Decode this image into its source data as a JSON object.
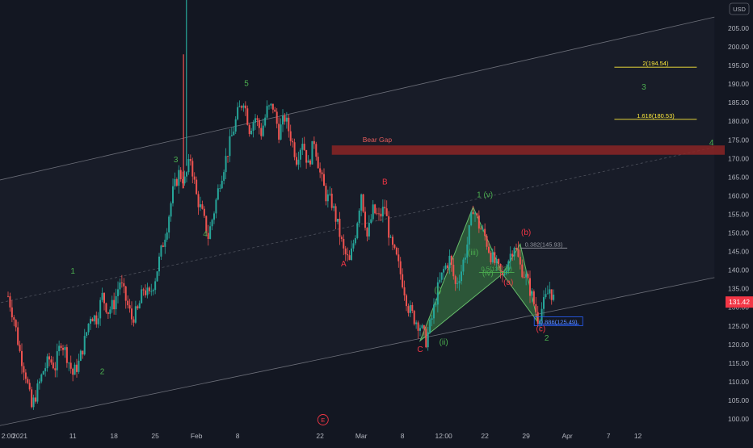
{
  "chart_data": {
    "type": "candlestick",
    "currency": "USD",
    "last_price": "131.42",
    "y_ticks": [
      "205.00",
      "200.00",
      "195.00",
      "190.00",
      "185.00",
      "180.00",
      "175.00",
      "170.00",
      "165.00",
      "160.00",
      "155.00",
      "150.00",
      "145.00",
      "140.00",
      "135.00",
      "130.00",
      "125.00",
      "120.00",
      "115.00",
      "110.00",
      "105.00",
      "100.00"
    ],
    "x_ticks": [
      {
        "label": "2:00",
        "day": 0
      },
      {
        "label": "2021",
        "day": 2
      },
      {
        "label": "11",
        "day": 11
      },
      {
        "label": "18",
        "day": 18
      },
      {
        "label": "25",
        "day": 25
      },
      {
        "label": "Feb",
        "day": 32
      },
      {
        "label": "8",
        "day": 39
      },
      {
        "label": "22",
        "day": 53
      },
      {
        "label": "Mar",
        "day": 60
      },
      {
        "label": "8",
        "day": 67
      },
      {
        "label": "12:00",
        "day": 74
      },
      {
        "label": "22",
        "day": 81
      },
      {
        "label": "29",
        "day": 88
      },
      {
        "label": "Apr",
        "day": 95
      },
      {
        "label": "7",
        "day": 102
      },
      {
        "label": "12",
        "day": 107
      }
    ],
    "price_path": [
      [
        0,
        133
      ],
      [
        1,
        127
      ],
      [
        2,
        118
      ],
      [
        3,
        112
      ],
      [
        4,
        103
      ],
      [
        5,
        108
      ],
      [
        6,
        113
      ],
      [
        7,
        116
      ],
      [
        8,
        114
      ],
      [
        9,
        121
      ],
      [
        10,
        117
      ],
      [
        11,
        112
      ],
      [
        12,
        115
      ],
      [
        13,
        121
      ],
      [
        14,
        128
      ],
      [
        15,
        127
      ],
      [
        16,
        133
      ],
      [
        17,
        129
      ],
      [
        18,
        131
      ],
      [
        19,
        137
      ],
      [
        20,
        132
      ],
      [
        21,
        127
      ],
      [
        22,
        129
      ],
      [
        23,
        135
      ],
      [
        24,
        133
      ],
      [
        25,
        138
      ],
      [
        26,
        145
      ],
      [
        27,
        152
      ],
      [
        28,
        161
      ],
      [
        29,
        166
      ],
      [
        30,
        164
      ],
      [
        31,
        170
      ],
      [
        32,
        160
      ],
      [
        33,
        155
      ],
      [
        34,
        149
      ],
      [
        35,
        156
      ],
      [
        36,
        164
      ],
      [
        37,
        170
      ],
      [
        38,
        176
      ],
      [
        39,
        182
      ],
      [
        40,
        186
      ],
      [
        41,
        178
      ],
      [
        42,
        181
      ],
      [
        43,
        177
      ],
      [
        44,
        183
      ],
      [
        45,
        184
      ],
      [
        46,
        177
      ],
      [
        47,
        181
      ],
      [
        48,
        176
      ],
      [
        49,
        170
      ],
      [
        50,
        175
      ],
      [
        51,
        168
      ],
      [
        52,
        175
      ],
      [
        53,
        166
      ],
      [
        54,
        160
      ],
      [
        55,
        158
      ],
      [
        56,
        152
      ],
      [
        57,
        145
      ],
      [
        58,
        142
      ],
      [
        59,
        150
      ],
      [
        60,
        161
      ],
      [
        61,
        149
      ],
      [
        62,
        156
      ],
      [
        63,
        154
      ],
      [
        64,
        157
      ],
      [
        65,
        147
      ],
      [
        66,
        143
      ],
      [
        67,
        137
      ],
      [
        68,
        130
      ],
      [
        69,
        127
      ],
      [
        70,
        125
      ],
      [
        71,
        121
      ],
      [
        72,
        127
      ],
      [
        73,
        135
      ],
      [
        74,
        140
      ],
      [
        75,
        143
      ],
      [
        76,
        136
      ],
      [
        77,
        140
      ],
      [
        78,
        147
      ],
      [
        79,
        157
      ],
      [
        80,
        152
      ],
      [
        81,
        149
      ],
      [
        82,
        144
      ],
      [
        83,
        141
      ],
      [
        84,
        138
      ],
      [
        85,
        143
      ],
      [
        86,
        147
      ],
      [
        87,
        141
      ],
      [
        88,
        138
      ],
      [
        89,
        133
      ],
      [
        90,
        127
      ],
      [
        91,
        131
      ],
      [
        92,
        135
      ],
      [
        93,
        131
      ]
    ],
    "spike_high": 215,
    "spike_low_wick": 170,
    "wave_labels": [
      {
        "text": "1",
        "day": 11,
        "price": 139,
        "color": "#4caf50"
      },
      {
        "text": "2",
        "day": 16,
        "price": 112,
        "color": "#4caf50"
      },
      {
        "text": "3",
        "day": 28.5,
        "price": 169,
        "color": "#4caf50"
      },
      {
        "text": "4",
        "day": 33.5,
        "price": 149,
        "color": "#4caf50"
      },
      {
        "text": "5",
        "day": 40.5,
        "price": 189.5,
        "color": "#4caf50"
      },
      {
        "text": "A",
        "day": 57,
        "price": 141,
        "color": "#f23645"
      },
      {
        "text": "B",
        "day": 64,
        "price": 163,
        "color": "#f23645"
      },
      {
        "text": "C",
        "day": 70,
        "price": 118,
        "color": "#f23645"
      },
      {
        "text": "(i)",
        "day": 73,
        "price": 134,
        "color": "#4caf50"
      },
      {
        "text": "(ii)",
        "day": 74,
        "price": 120,
        "color": "#4caf50"
      },
      {
        "text": "(iii)",
        "day": 79,
        "price": 144,
        "color": "#4caf50"
      },
      {
        "text": "1 (v)",
        "day": 81,
        "price": 159.5,
        "color": "#4caf50"
      },
      {
        "text": "(iv)",
        "day": 81.5,
        "price": 138.5,
        "color": "#4caf50"
      },
      {
        "text": "(a)",
        "day": 85,
        "price": 136,
        "color": "#f23645"
      },
      {
        "text": "(b)",
        "day": 88,
        "price": 149.5,
        "color": "#f23645"
      },
      {
        "text": "(c)",
        "day": 90.5,
        "price": 123.5,
        "color": "#f23645"
      },
      {
        "text": "2",
        "day": 91.5,
        "price": 121,
        "color": "#4caf50"
      },
      {
        "text": "3",
        "day": 108,
        "price": 188.5,
        "color": "#4caf50"
      },
      {
        "text": "4",
        "day": 119.5,
        "price": 173.5,
        "color": "#4caf50"
      }
    ],
    "fib_labels": [
      {
        "text": "2(194.54)",
        "day_start": 103,
        "day_end": 117,
        "price": 194.54,
        "color": "#ffeb3b"
      },
      {
        "text": "1.618(180.53)",
        "day_start": 103,
        "day_end": 117,
        "price": 180.53,
        "color": "#ffeb3b"
      },
      {
        "text": "0.382(145.93)",
        "day_start": 87,
        "day_end": 95,
        "price": 145.93,
        "color": "#9598a1"
      },
      {
        "text": "0.5(139.39)",
        "day_start": 80,
        "day_end": 86,
        "price": 139.39,
        "color": "#4caf50"
      },
      {
        "text": "0.886(125.49)",
        "day_start": 90,
        "day_end": 97,
        "price": 125.49,
        "color": "#2962ff"
      }
    ],
    "bear_gap": {
      "label": "Bear Gap",
      "price_top": 173.5,
      "price_bottom": 171.0,
      "day_start": 55
    },
    "harmonic_pattern": [
      [
        70,
        121
      ],
      [
        79,
        157
      ],
      [
        84,
        139
      ],
      [
        87,
        147
      ],
      [
        90,
        126
      ]
    ],
    "channel": {
      "upper": [
        [
          -2,
          164
        ],
        [
          120,
          208
        ]
      ],
      "lower": [
        [
          -2,
          98
        ],
        [
          120,
          138
        ]
      ],
      "mid": [
        [
          -2,
          131
        ],
        [
          120,
          173
        ]
      ]
    },
    "event_marker": "E"
  }
}
